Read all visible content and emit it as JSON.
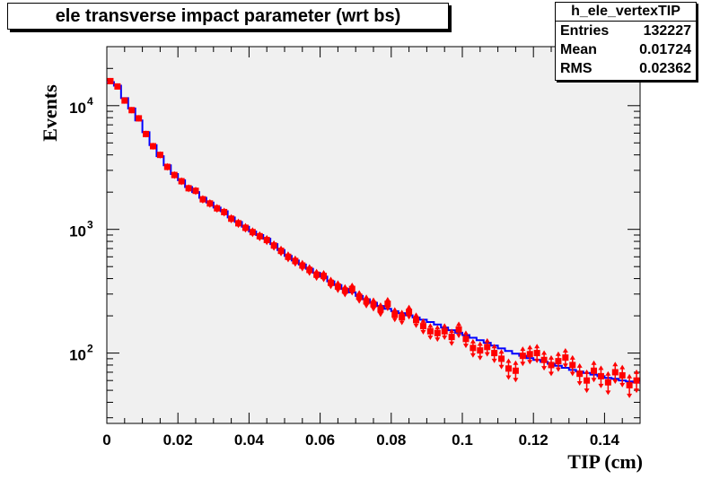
{
  "chart_data": {
    "type": "line",
    "title": "ele transverse impact parameter (wrt bs)",
    "xlabel": "TIP (cm)",
    "ylabel": "Events",
    "xlim": [
      0,
      0.15
    ],
    "ylim": [
      27,
      30000
    ],
    "yscale": "log",
    "x_ticks": [
      0,
      0.02,
      0.04,
      0.06,
      0.08,
      0.1,
      0.12,
      0.14
    ],
    "x_tick_labels": [
      "0",
      "0.02",
      "0.04",
      "0.06",
      "0.08",
      "0.1",
      "0.12",
      "0.14"
    ],
    "y_ticks": [
      100,
      1000,
      10000
    ],
    "y_tick_labels": [
      "10",
      "10",
      "10"
    ],
    "y_tick_exponents": [
      "2",
      "3",
      "4"
    ],
    "grid": false,
    "series": [
      {
        "color": "#0000ff",
        "style": "step",
        "x": [
          0.001,
          0.003,
          0.005,
          0.007,
          0.009,
          0.011,
          0.013,
          0.015,
          0.017,
          0.019,
          0.021,
          0.023,
          0.025,
          0.027,
          0.029,
          0.031,
          0.033,
          0.035,
          0.037,
          0.039,
          0.041,
          0.043,
          0.045,
          0.047,
          0.049,
          0.051,
          0.053,
          0.055,
          0.057,
          0.059,
          0.061,
          0.063,
          0.065,
          0.067,
          0.069,
          0.071,
          0.073,
          0.075,
          0.077,
          0.079,
          0.081,
          0.083,
          0.085,
          0.087,
          0.089,
          0.091,
          0.093,
          0.095,
          0.097,
          0.099,
          0.101,
          0.103,
          0.105,
          0.107,
          0.109,
          0.111,
          0.113,
          0.115,
          0.117,
          0.119,
          0.121,
          0.123,
          0.125,
          0.127,
          0.129,
          0.131,
          0.133,
          0.135,
          0.137,
          0.139,
          0.141,
          0.143,
          0.145,
          0.147,
          0.149
        ],
        "y": [
          15500,
          14500,
          11500,
          9500,
          7600,
          6100,
          4800,
          3900,
          3300,
          2800,
          2500,
          2200,
          2000,
          1800,
          1650,
          1500,
          1400,
          1250,
          1150,
          1050,
          960,
          900,
          840,
          760,
          680,
          610,
          560,
          520,
          480,
          445,
          415,
          380,
          355,
          330,
          310,
          290,
          272,
          255,
          240,
          228,
          218,
          210,
          202,
          194,
          186,
          178,
          170,
          161,
          153,
          146,
          140,
          133,
          127,
          121,
          115,
          109,
          104,
          99,
          95,
          91,
          88,
          85,
          82,
          79,
          76,
          73,
          71,
          69,
          67,
          65,
          63,
          62,
          60,
          59,
          58
        ]
      },
      {
        "color": "#ff0000",
        "style": "markers",
        "x": [
          0.001,
          0.003,
          0.005,
          0.007,
          0.009,
          0.011,
          0.013,
          0.015,
          0.017,
          0.019,
          0.021,
          0.023,
          0.025,
          0.027,
          0.029,
          0.031,
          0.033,
          0.035,
          0.037,
          0.039,
          0.041,
          0.043,
          0.045,
          0.047,
          0.049,
          0.051,
          0.053,
          0.055,
          0.057,
          0.059,
          0.061,
          0.063,
          0.065,
          0.067,
          0.069,
          0.071,
          0.073,
          0.075,
          0.077,
          0.079,
          0.081,
          0.083,
          0.085,
          0.087,
          0.089,
          0.091,
          0.093,
          0.095,
          0.097,
          0.099,
          0.101,
          0.103,
          0.105,
          0.107,
          0.109,
          0.111,
          0.113,
          0.115,
          0.117,
          0.119,
          0.121,
          0.123,
          0.125,
          0.127,
          0.129,
          0.131,
          0.133,
          0.135,
          0.137,
          0.139,
          0.141,
          0.143,
          0.145,
          0.147,
          0.149
        ],
        "y": [
          15800,
          14300,
          11000,
          9200,
          7900,
          5900,
          4700,
          4000,
          3200,
          2750,
          2450,
          2150,
          2050,
          1750,
          1620,
          1480,
          1380,
          1220,
          1120,
          1030,
          950,
          880,
          820,
          740,
          670,
          600,
          555,
          510,
          470,
          430,
          420,
          370,
          345,
          320,
          330,
          285,
          262,
          248,
          225,
          250,
          205,
          195,
          215,
          185,
          165,
          150,
          145,
          150,
          135,
          155,
          130,
          110,
          105,
          112,
          100,
          90,
          75,
          72,
          95,
          98,
          100,
          88,
          80,
          86,
          92,
          80,
          68,
          60,
          72,
          65,
          58,
          70,
          66,
          55,
          60
        ]
      }
    ]
  },
  "stats": {
    "title": "h_ele_vertexTIP",
    "rows": [
      {
        "label": "Entries",
        "value": "132227"
      },
      {
        "label": "Mean",
        "value": "0.01724"
      },
      {
        "label": "RMS",
        "value": "0.02362"
      }
    ]
  }
}
